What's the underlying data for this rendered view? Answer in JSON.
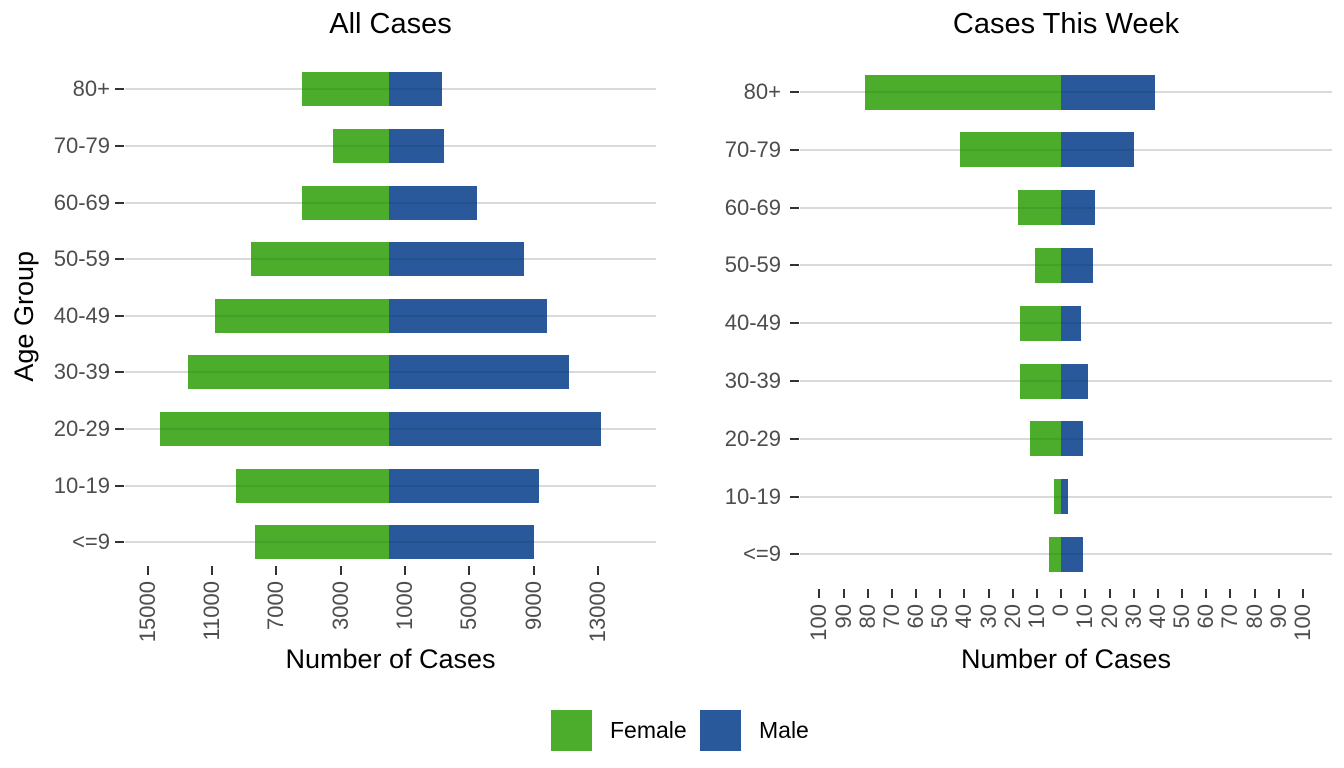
{
  "figure": {
    "y_axis_title": "Age Group",
    "x_axis_title": "Number of Cases"
  },
  "legend": {
    "position": "bottom",
    "items": [
      {
        "label": "Female",
        "color": "#4CAD2D"
      },
      {
        "label": "Male",
        "color": "#29599A"
      }
    ]
  },
  "chart_data": [
    {
      "type": "bar",
      "subtype": "population-pyramid",
      "title": "All Cases",
      "xlabel": "Number of Cases",
      "ylabel": "Age Group",
      "grid": "horizontal-only",
      "legend_position": "bottom",
      "categories_top_to_bottom": [
        "80+",
        "70-79",
        "60-69",
        "50-59",
        "40-49",
        "30-39",
        "20-29",
        "10-19",
        "<=9"
      ],
      "series": [
        {
          "name": "Female",
          "color": "#4CAD2D",
          "direction": "left",
          "values": [
            5400,
            3500,
            5400,
            8600,
            10800,
            12500,
            14200,
            9500,
            8300
          ]
        },
        {
          "name": "Male",
          "color": "#29599A",
          "direction": "right",
          "values": [
            3300,
            3400,
            5500,
            8400,
            9800,
            11200,
            13200,
            9300,
            9000
          ]
        }
      ],
      "xlim": [
        -16400,
        16600
      ],
      "x_tick_values": [
        -15000,
        -11000,
        -7000,
        -3000,
        1000,
        5000,
        9000,
        13000
      ],
      "x_tick_labels": [
        "15000",
        "11000",
        "7000",
        "3000",
        "1000",
        "5000",
        "9000",
        "13000"
      ]
    },
    {
      "type": "bar",
      "subtype": "population-pyramid",
      "title": "Cases This Week",
      "xlabel": "Number of Cases",
      "ylabel": "Age Group",
      "grid": "horizontal-only",
      "legend_position": "bottom",
      "categories_top_to_bottom": [
        "80+",
        "70-79",
        "60-69",
        "50-59",
        "40-49",
        "30-39",
        "20-29",
        "10-19",
        "<=9"
      ],
      "series": [
        {
          "name": "Female",
          "color": "#4CAD2D",
          "direction": "left",
          "values": [
            81,
            42,
            18,
            11,
            17,
            17,
            13,
            3,
            5
          ]
        },
        {
          "name": "Male",
          "color": "#29599A",
          "direction": "right",
          "values": [
            39,
            30,
            14,
            13,
            8,
            11,
            9,
            3,
            9
          ]
        }
      ],
      "xlim": [
        -108,
        112
      ],
      "x_tick_values": [
        -100,
        -90,
        -80,
        -70,
        -60,
        -50,
        -40,
        -30,
        -20,
        -10,
        0,
        10,
        20,
        30,
        40,
        50,
        60,
        70,
        80,
        90,
        100
      ],
      "x_tick_labels": [
        "100",
        "90",
        "80",
        "70",
        "60",
        "50",
        "40",
        "30",
        "20",
        "10",
        "0",
        "10",
        "20",
        "30",
        "40",
        "50",
        "60",
        "70",
        "80",
        "90",
        "100"
      ]
    }
  ]
}
